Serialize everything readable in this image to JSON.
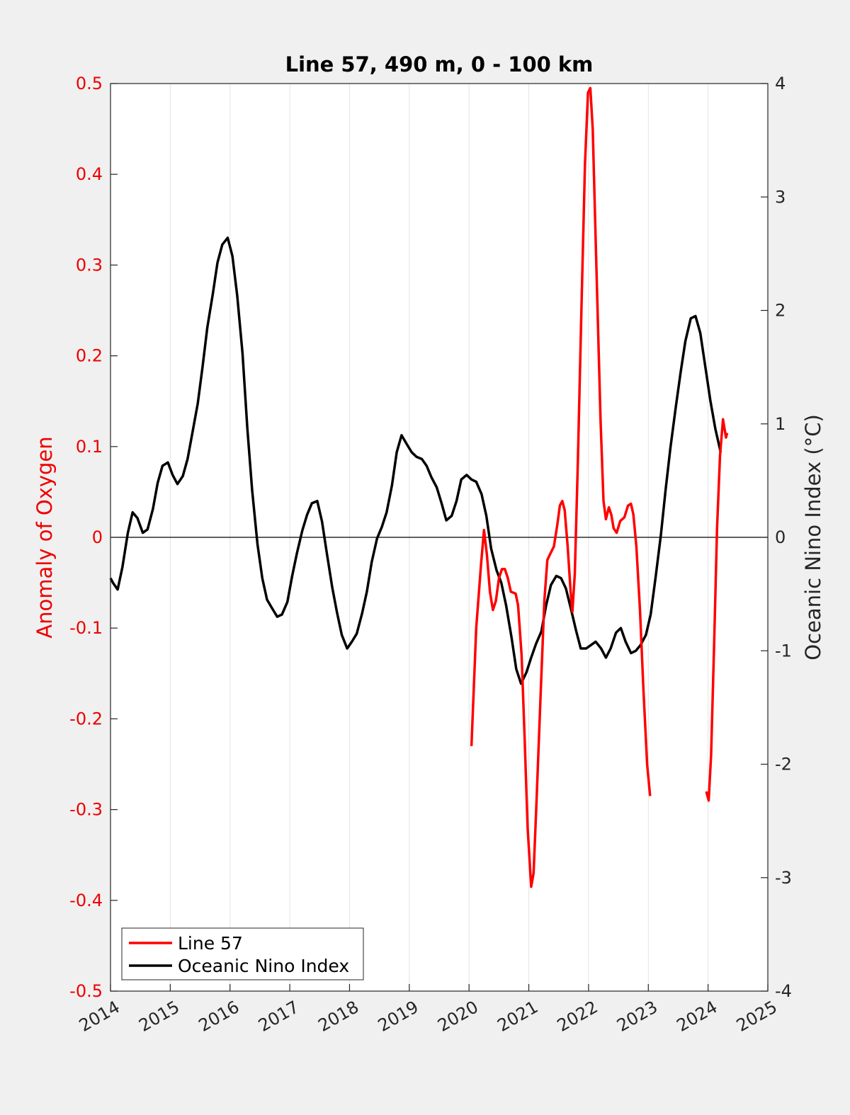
{
  "chart_data": {
    "type": "line",
    "title": "Line 57, 490 m, 0 - 100 km",
    "ylabel_left": "Anomaly of Oxygen",
    "ylabel_right": "Oceanic Nino Index (°C)",
    "xlim": [
      2014,
      2025
    ],
    "ylim_left": [
      -0.5,
      0.5
    ],
    "ylim_right": [
      -4,
      4
    ],
    "x_ticks": [
      "2014",
      "2015",
      "2016",
      "2017",
      "2018",
      "2019",
      "2020",
      "2021",
      "2022",
      "2023",
      "2024",
      "2025"
    ],
    "y_left_ticks": [
      "0.5",
      "0.4",
      "0.3",
      "0.2",
      "0.1",
      "0",
      "-0.1",
      "-0.2",
      "-0.3",
      "-0.4",
      "-0.5"
    ],
    "y_right_ticks": [
      "4",
      "3",
      "2",
      "1",
      "0",
      "-1",
      "-2",
      "-3",
      "-4"
    ],
    "grid": "vertical",
    "legend_position": "bottom-left",
    "colors": {
      "line57": "#ff0000",
      "oni": "#000000",
      "left_axis": "#ee0000",
      "right_axis": "#262626"
    },
    "series": [
      {
        "name": "Line 57",
        "axis": "left",
        "segments": [
          [
            [
              2020.04,
              -0.23
            ],
            [
              2020.12,
              -0.1
            ],
            [
              2020.2,
              -0.03
            ],
            [
              2020.25,
              0.008
            ],
            [
              2020.3,
              -0.02
            ],
            [
              2020.35,
              -0.06
            ],
            [
              2020.4,
              -0.08
            ],
            [
              2020.45,
              -0.07
            ],
            [
              2020.5,
              -0.045
            ],
            [
              2020.55,
              -0.035
            ],
            [
              2020.6,
              -0.035
            ],
            [
              2020.65,
              -0.045
            ],
            [
              2020.7,
              -0.06
            ],
            [
              2020.78,
              -0.062
            ],
            [
              2020.82,
              -0.075
            ],
            [
              2020.88,
              -0.13
            ],
            [
              2020.93,
              -0.22
            ],
            [
              2020.98,
              -0.32
            ],
            [
              2021.04,
              -0.385
            ],
            [
              2021.08,
              -0.37
            ],
            [
              2021.13,
              -0.29
            ],
            [
              2021.2,
              -0.17
            ],
            [
              2021.26,
              -0.07
            ],
            [
              2021.31,
              -0.025
            ],
            [
              2021.36,
              -0.018
            ],
            [
              2021.42,
              -0.01
            ],
            [
              2021.48,
              0.015
            ],
            [
              2021.52,
              0.035
            ],
            [
              2021.56,
              0.04
            ],
            [
              2021.6,
              0.03
            ],
            [
              2021.65,
              -0.01
            ],
            [
              2021.7,
              -0.06
            ],
            [
              2021.73,
              -0.082
            ],
            [
              2021.77,
              -0.04
            ],
            [
              2021.82,
              0.08
            ],
            [
              2021.88,
              0.25
            ],
            [
              2021.94,
              0.41
            ],
            [
              2021.99,
              0.49
            ],
            [
              2022.03,
              0.495
            ],
            [
              2022.07,
              0.45
            ],
            [
              2022.13,
              0.3
            ],
            [
              2022.2,
              0.13
            ],
            [
              2022.25,
              0.04
            ],
            [
              2022.29,
              0.02
            ],
            [
              2022.34,
              0.033
            ],
            [
              2022.38,
              0.025
            ],
            [
              2022.42,
              0.01
            ],
            [
              2022.47,
              0.005
            ],
            [
              2022.53,
              0.018
            ],
            [
              2022.6,
              0.022
            ],
            [
              2022.66,
              0.035
            ],
            [
              2022.71,
              0.037
            ],
            [
              2022.75,
              0.025
            ],
            [
              2022.8,
              -0.01
            ],
            [
              2022.86,
              -0.08
            ],
            [
              2022.92,
              -0.17
            ],
            [
              2022.98,
              -0.25
            ],
            [
              2023.03,
              -0.285
            ]
          ],
          [
            [
              2023.97,
              -0.28
            ],
            [
              2024.01,
              -0.29
            ],
            [
              2024.05,
              -0.24
            ],
            [
              2024.1,
              -0.12
            ],
            [
              2024.15,
              0.01
            ],
            [
              2024.2,
              0.09
            ],
            [
              2024.25,
              0.13
            ],
            [
              2024.3,
              0.11
            ],
            [
              2024.32,
              0.115
            ]
          ]
        ]
      },
      {
        "name": "Oceanic Nino Index",
        "axis": "right",
        "segments": [
          [
            [
              2014.0,
              -0.36
            ],
            [
              2014.04,
              -0.4
            ],
            [
              2014.12,
              -0.46
            ],
            [
              2014.2,
              -0.26
            ],
            [
              2014.29,
              0.04
            ],
            [
              2014.37,
              0.22
            ],
            [
              2014.45,
              0.17
            ],
            [
              2014.54,
              0.04
            ],
            [
              2014.62,
              0.07
            ],
            [
              2014.71,
              0.25
            ],
            [
              2014.79,
              0.48
            ],
            [
              2014.87,
              0.63
            ],
            [
              2014.96,
              0.66
            ],
            [
              2015.04,
              0.55
            ],
            [
              2015.12,
              0.47
            ],
            [
              2015.21,
              0.54
            ],
            [
              2015.29,
              0.69
            ],
            [
              2015.37,
              0.92
            ],
            [
              2015.46,
              1.18
            ],
            [
              2015.54,
              1.5
            ],
            [
              2015.62,
              1.85
            ],
            [
              2015.71,
              2.14
            ],
            [
              2015.79,
              2.42
            ],
            [
              2015.87,
              2.58
            ],
            [
              2015.96,
              2.64
            ],
            [
              2016.04,
              2.48
            ],
            [
              2016.12,
              2.13
            ],
            [
              2016.21,
              1.62
            ],
            [
              2016.29,
              0.96
            ],
            [
              2016.37,
              0.42
            ],
            [
              2016.46,
              -0.06
            ],
            [
              2016.54,
              -0.36
            ],
            [
              2016.62,
              -0.55
            ],
            [
              2016.71,
              -0.63
            ],
            [
              2016.79,
              -0.7
            ],
            [
              2016.87,
              -0.68
            ],
            [
              2016.96,
              -0.57
            ],
            [
              2017.04,
              -0.34
            ],
            [
              2017.12,
              -0.14
            ],
            [
              2017.21,
              0.06
            ],
            [
              2017.29,
              0.2
            ],
            [
              2017.37,
              0.3
            ],
            [
              2017.46,
              0.32
            ],
            [
              2017.54,
              0.14
            ],
            [
              2017.62,
              -0.14
            ],
            [
              2017.71,
              -0.44
            ],
            [
              2017.79,
              -0.66
            ],
            [
              2017.87,
              -0.86
            ],
            [
              2017.96,
              -0.98
            ],
            [
              2018.04,
              -0.92
            ],
            [
              2018.12,
              -0.85
            ],
            [
              2018.21,
              -0.67
            ],
            [
              2018.29,
              -0.48
            ],
            [
              2018.37,
              -0.22
            ],
            [
              2018.46,
              -0.01
            ],
            [
              2018.54,
              0.09
            ],
            [
              2018.62,
              0.22
            ],
            [
              2018.71,
              0.46
            ],
            [
              2018.79,
              0.75
            ],
            [
              2018.87,
              0.9
            ],
            [
              2018.96,
              0.82
            ],
            [
              2019.04,
              0.75
            ],
            [
              2019.12,
              0.71
            ],
            [
              2019.21,
              0.69
            ],
            [
              2019.29,
              0.63
            ],
            [
              2019.37,
              0.53
            ],
            [
              2019.46,
              0.44
            ],
            [
              2019.54,
              0.3
            ],
            [
              2019.62,
              0.15
            ],
            [
              2019.71,
              0.19
            ],
            [
              2019.79,
              0.32
            ],
            [
              2019.87,
              0.51
            ],
            [
              2019.96,
              0.55
            ],
            [
              2020.04,
              0.51
            ],
            [
              2020.12,
              0.49
            ],
            [
              2020.21,
              0.38
            ],
            [
              2020.29,
              0.19
            ],
            [
              2020.37,
              -0.1
            ],
            [
              2020.46,
              -0.29
            ],
            [
              2020.54,
              -0.4
            ],
            [
              2020.62,
              -0.6
            ],
            [
              2020.71,
              -0.88
            ],
            [
              2020.79,
              -1.16
            ],
            [
              2020.87,
              -1.29
            ],
            [
              2020.96,
              -1.19
            ],
            [
              2021.04,
              -1.06
            ],
            [
              2021.12,
              -0.94
            ],
            [
              2021.21,
              -0.83
            ],
            [
              2021.29,
              -0.6
            ],
            [
              2021.37,
              -0.42
            ],
            [
              2021.46,
              -0.34
            ],
            [
              2021.54,
              -0.36
            ],
            [
              2021.62,
              -0.45
            ],
            [
              2021.71,
              -0.64
            ],
            [
              2021.79,
              -0.82
            ],
            [
              2021.87,
              -0.98
            ],
            [
              2021.96,
              -0.98
            ],
            [
              2022.04,
              -0.95
            ],
            [
              2022.12,
              -0.92
            ],
            [
              2022.21,
              -0.98
            ],
            [
              2022.29,
              -1.06
            ],
            [
              2022.37,
              -0.98
            ],
            [
              2022.46,
              -0.84
            ],
            [
              2022.54,
              -0.8
            ],
            [
              2022.62,
              -0.92
            ],
            [
              2022.71,
              -1.02
            ],
            [
              2022.79,
              -1.0
            ],
            [
              2022.87,
              -0.95
            ],
            [
              2022.96,
              -0.86
            ],
            [
              2023.04,
              -0.68
            ],
            [
              2023.12,
              -0.36
            ],
            [
              2023.21,
              0.02
            ],
            [
              2023.29,
              0.42
            ],
            [
              2023.37,
              0.79
            ],
            [
              2023.46,
              1.15
            ],
            [
              2023.54,
              1.45
            ],
            [
              2023.62,
              1.73
            ],
            [
              2023.71,
              1.93
            ],
            [
              2023.79,
              1.95
            ],
            [
              2023.87,
              1.8
            ],
            [
              2023.96,
              1.48
            ],
            [
              2024.04,
              1.2
            ],
            [
              2024.12,
              0.96
            ],
            [
              2024.21,
              0.75
            ]
          ]
        ]
      }
    ]
  }
}
